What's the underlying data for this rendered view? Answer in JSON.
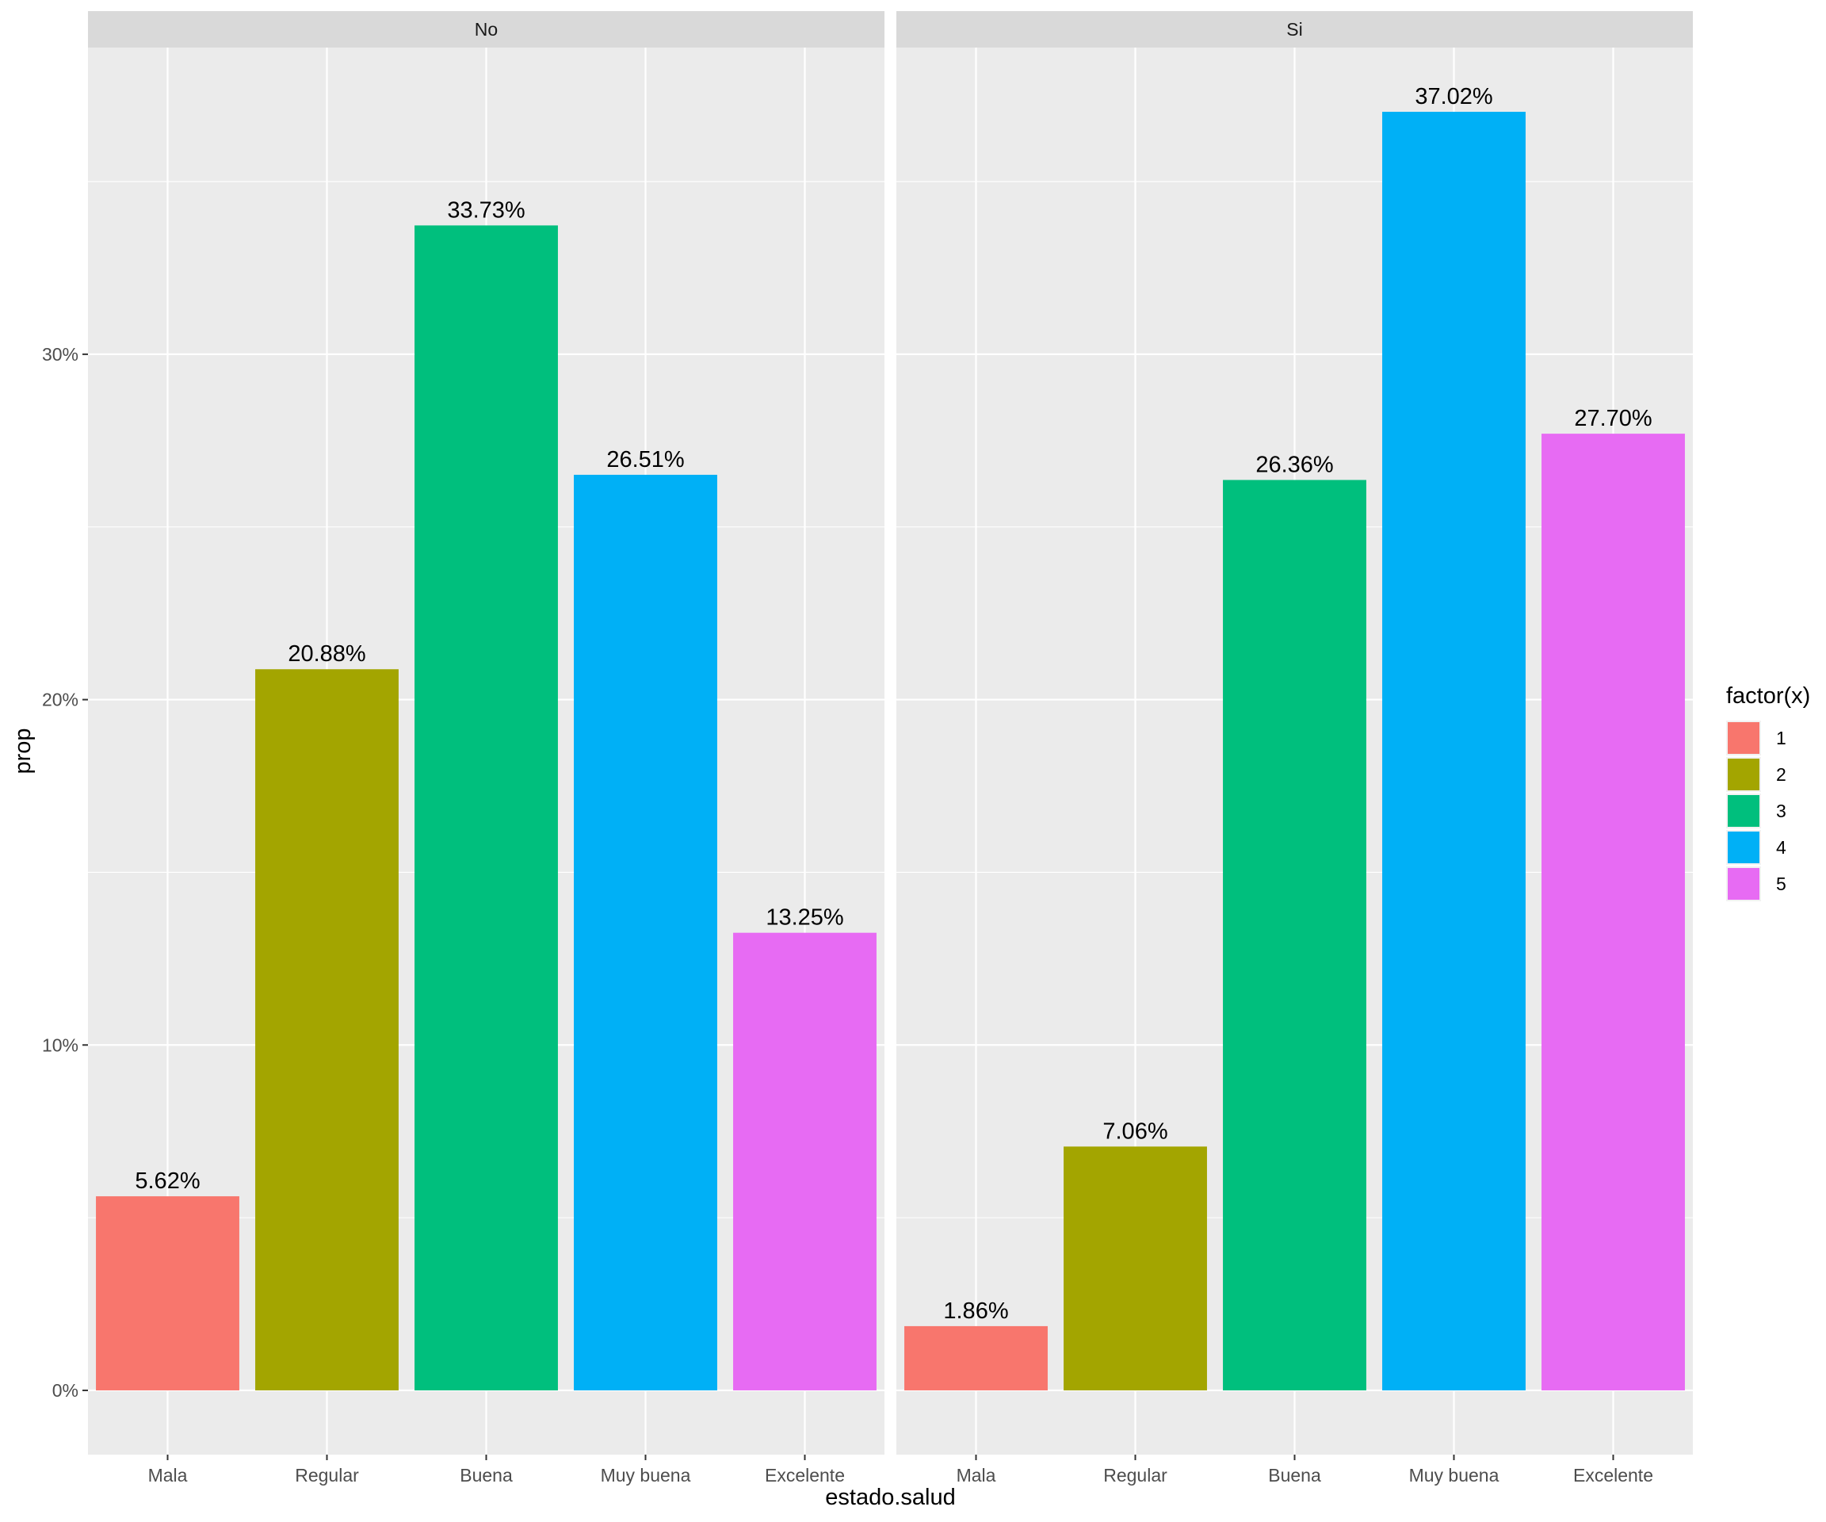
{
  "chart_data": {
    "type": "bar",
    "xlabel": "estado.salud",
    "ylabel": "prop",
    "y_unit": "%",
    "ylim": [
      -1.86,
      38.88
    ],
    "yticks": [
      0,
      10,
      20,
      30
    ],
    "ytick_labels": [
      "0%",
      "10%",
      "20%",
      "30%"
    ],
    "categories": [
      "Mala",
      "Regular",
      "Buena",
      "Muy buena",
      "Excelente"
    ],
    "facets": [
      {
        "label": "No",
        "values": [
          5.62,
          20.88,
          33.73,
          26.51,
          13.25
        ],
        "value_labels": [
          "5.62%",
          "20.88%",
          "33.73%",
          "26.51%",
          "13.25%"
        ]
      },
      {
        "label": "Si",
        "values": [
          1.86,
          7.06,
          26.36,
          37.02,
          27.7
        ],
        "value_labels": [
          "1.86%",
          "7.06%",
          "26.36%",
          "37.02%",
          "27.70%"
        ]
      }
    ],
    "legend": {
      "title": "factor(x)",
      "position": "right",
      "items": [
        {
          "label": "1",
          "color": "#F8766D"
        },
        {
          "label": "2",
          "color": "#A3A500"
        },
        {
          "label": "3",
          "color": "#00BF7D"
        },
        {
          "label": "4",
          "color": "#00B0F6"
        },
        {
          "label": "5",
          "color": "#E76BF3"
        }
      ]
    },
    "grid": true,
    "panel_background": "#EBEBEB",
    "strip_background": "#D9D9D9",
    "grid_color": "#FFFFFF"
  }
}
